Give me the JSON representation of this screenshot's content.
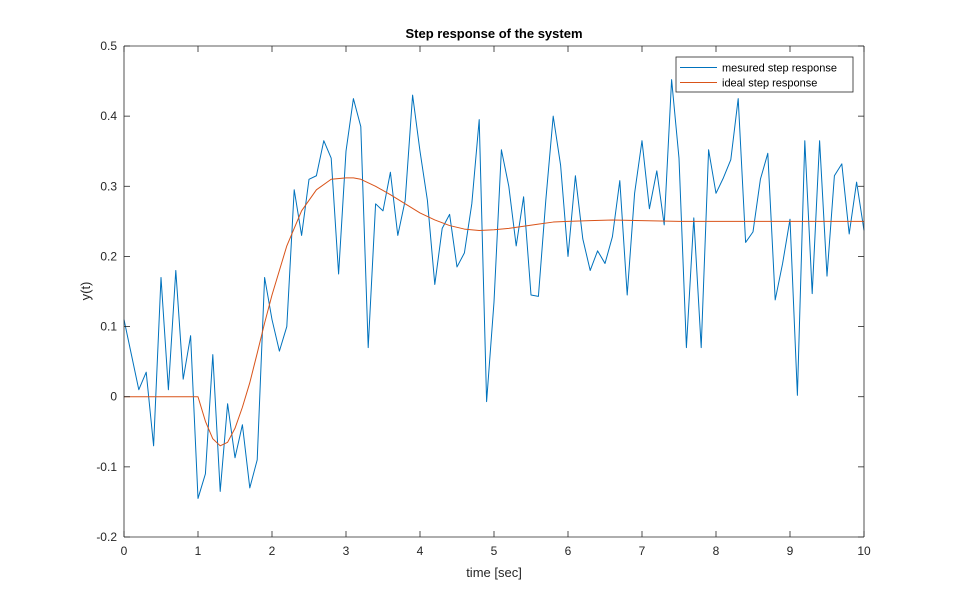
{
  "chart_data": {
    "type": "line",
    "title": "Step response of the system",
    "xlabel": "time [sec]",
    "ylabel": "y(t)",
    "xlim": [
      0,
      10
    ],
    "ylim": [
      -0.2,
      0.5
    ],
    "x_ticks": [
      0,
      1,
      2,
      3,
      4,
      5,
      6,
      7,
      8,
      9,
      10
    ],
    "x_tick_labels": [
      "0",
      "1",
      "2",
      "3",
      "4",
      "5",
      "6",
      "7",
      "8",
      "9",
      "10"
    ],
    "y_ticks": [
      -0.2,
      -0.1,
      0,
      0.1,
      0.2,
      0.3,
      0.4,
      0.5
    ],
    "y_tick_labels": [
      "-0.2",
      "-0.1",
      "0",
      "0.1",
      "0.2",
      "0.3",
      "0.4",
      "0.5"
    ],
    "grid": false,
    "legend_position": "top-right",
    "series": [
      {
        "name": "mesured step response",
        "color": "#0072BD",
        "x": [
          0,
          0.1,
          0.2,
          0.3,
          0.4,
          0.5,
          0.6,
          0.7,
          0.8,
          0.9,
          1.0,
          1.1,
          1.2,
          1.3,
          1.4,
          1.5,
          1.6,
          1.7,
          1.8,
          1.9,
          2.0,
          2.1,
          2.2,
          2.3,
          2.4,
          2.5,
          2.6,
          2.7,
          2.8,
          2.9,
          3.0,
          3.1,
          3.2,
          3.3,
          3.4,
          3.5,
          3.6,
          3.7,
          3.8,
          3.9,
          4.0,
          4.1,
          4.2,
          4.3,
          4.4,
          4.5,
          4.6,
          4.7,
          4.8,
          4.9,
          5.0,
          5.1,
          5.2,
          5.3,
          5.4,
          5.5,
          5.6,
          5.7,
          5.8,
          5.9,
          6.0,
          6.1,
          6.2,
          6.3,
          6.4,
          6.5,
          6.6,
          6.7,
          6.8,
          6.9,
          7.0,
          7.1,
          7.2,
          7.3,
          7.4,
          7.5,
          7.6,
          7.7,
          7.8,
          7.9,
          8.0,
          8.1,
          8.2,
          8.3,
          8.4,
          8.5,
          8.6,
          8.7,
          8.8,
          8.9,
          9.0,
          9.1,
          9.2,
          9.3,
          9.4,
          9.5,
          9.6,
          9.7,
          9.8,
          9.9,
          10.0
        ],
        "y": [
          0.11,
          0.06,
          0.01,
          0.035,
          -0.07,
          0.17,
          0.01,
          0.18,
          0.025,
          0.087,
          -0.145,
          -0.11,
          0.06,
          -0.135,
          -0.01,
          -0.087,
          -0.04,
          -0.13,
          -0.09,
          0.17,
          0.11,
          0.065,
          0.1,
          0.295,
          0.23,
          0.31,
          0.315,
          0.365,
          0.34,
          0.175,
          0.35,
          0.425,
          0.385,
          0.07,
          0.275,
          0.265,
          0.32,
          0.23,
          0.28,
          0.43,
          0.35,
          0.28,
          0.16,
          0.24,
          0.26,
          0.185,
          0.205,
          0.275,
          0.395,
          -0.007,
          0.135,
          0.352,
          0.3,
          0.215,
          0.285,
          0.145,
          0.143,
          0.28,
          0.4,
          0.33,
          0.2,
          0.315,
          0.225,
          0.18,
          0.208,
          0.19,
          0.228,
          0.308,
          0.145,
          0.29,
          0.365,
          0.268,
          0.322,
          0.245,
          0.452,
          0.34,
          0.07,
          0.255,
          0.07,
          0.352,
          0.29,
          0.312,
          0.338,
          0.425,
          0.22,
          0.235,
          0.31,
          0.347,
          0.138,
          0.19,
          0.253,
          0.002,
          0.365,
          0.147,
          0.365,
          0.172,
          0.315,
          0.332,
          0.232,
          0.306,
          0.237
        ]
      },
      {
        "name": "ideal step response",
        "color": "#D95319",
        "x": [
          0,
          1.0,
          1.1,
          1.2,
          1.3,
          1.4,
          1.5,
          1.6,
          1.7,
          1.8,
          1.9,
          2.0,
          2.2,
          2.4,
          2.6,
          2.8,
          3.0,
          3.1,
          3.2,
          3.4,
          3.6,
          3.8,
          4.0,
          4.2,
          4.4,
          4.6,
          4.8,
          5.0,
          5.2,
          5.4,
          5.6,
          5.8,
          6.0,
          6.3,
          6.6,
          7.0,
          7.5,
          8.0,
          9.0,
          10.0
        ],
        "y": [
          0,
          0,
          -0.035,
          -0.06,
          -0.07,
          -0.065,
          -0.045,
          -0.015,
          0.02,
          0.062,
          0.105,
          0.145,
          0.215,
          0.265,
          0.295,
          0.31,
          0.312,
          0.312,
          0.31,
          0.3,
          0.288,
          0.275,
          0.262,
          0.252,
          0.244,
          0.239,
          0.237,
          0.238,
          0.24,
          0.243,
          0.246,
          0.249,
          0.25,
          0.251,
          0.252,
          0.251,
          0.25,
          0.25,
          0.25,
          0.25
        ]
      }
    ]
  }
}
